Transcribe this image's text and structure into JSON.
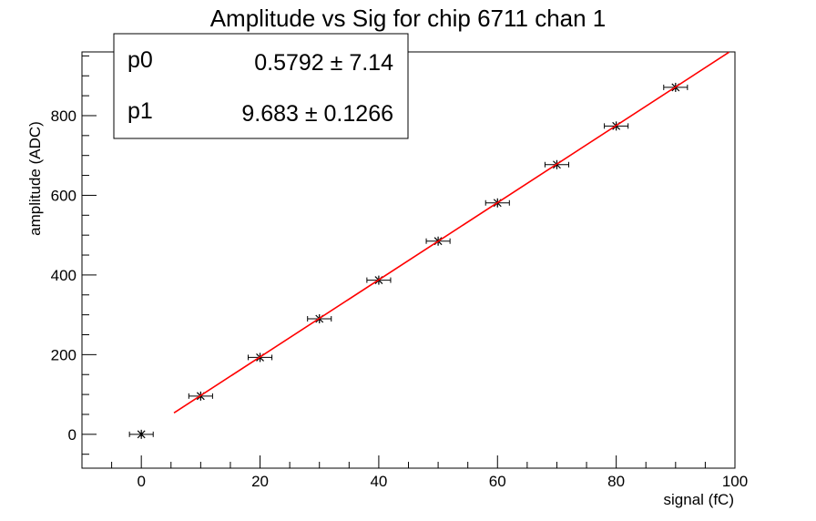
{
  "chart_data": {
    "type": "scatter",
    "title": "Amplitude vs Sig for chip 6711 chan 1",
    "xlabel": "signal (fC)",
    "ylabel": "amplitude (ADC)",
    "xlim": [
      -10,
      100
    ],
    "ylim": [
      -85,
      960
    ],
    "x_ticks": [
      0,
      20,
      40,
      60,
      80,
      100
    ],
    "y_ticks": [
      0,
      200,
      400,
      600,
      800
    ],
    "grid": false,
    "points": {
      "x": [
        0,
        10,
        20,
        30,
        40,
        50,
        60,
        70,
        80,
        90
      ],
      "y": [
        0,
        96,
        193,
        290,
        387,
        485,
        581,
        677,
        774,
        871
      ],
      "x_err": 2,
      "y_err": 6
    },
    "fit": {
      "color": "#ff0000",
      "x_range": [
        5.5,
        99
      ],
      "params": [
        {
          "name": "p0",
          "value": "0.5792",
          "error": "7.14",
          "numeric": 0.5792
        },
        {
          "name": "p1",
          "value": "9.683",
          "error": "0.1266",
          "numeric": 9.683
        }
      ]
    },
    "stats_box": {
      "placement": "top-left"
    }
  },
  "colors": {
    "points": "#000000",
    "fit": "#ff0000",
    "frame": "#000000"
  }
}
